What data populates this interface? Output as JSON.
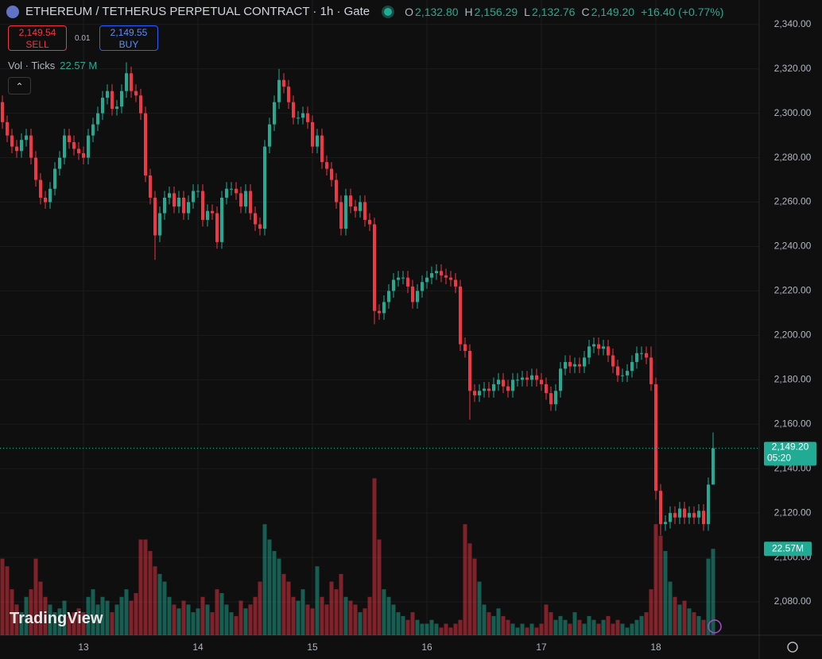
{
  "chart_data": {
    "type": "candlestick",
    "title": "ETHEREUM / TETHERUS PERPETUAL CONTRACT · 1h · Gate",
    "legend": [
      {
        "key": "O",
        "value": 2132.8,
        "label": "2,132.80"
      },
      {
        "key": "H",
        "value": 2156.29,
        "label": "2,156.29"
      },
      {
        "key": "L",
        "value": 2132.76,
        "label": "2,132.76"
      },
      {
        "key": "C",
        "value": 2149.2,
        "label": "2,149.20"
      }
    ],
    "change_label": "+16.40 (+0.77%)",
    "sell": {
      "value": 2149.54,
      "label": "2,149.54",
      "text": "SELL"
    },
    "spread": 0.01,
    "buy": {
      "value": 2149.55,
      "label": "2,149.55",
      "text": "BUY"
    },
    "volume_legend": {
      "name": "Vol · Ticks",
      "value": 22.57,
      "label": "22.57 M"
    },
    "last_price": {
      "value": 2149.2,
      "label": "2,149.20",
      "countdown": "05:20"
    },
    "last_volume": {
      "value": 22.57,
      "label": "22.57M"
    },
    "brand": "TradingView",
    "up_color": "#22ab94",
    "down_color": "#f23645",
    "grid": true,
    "categories": [
      null,
      null,
      null,
      null,
      null,
      null,
      null,
      null,
      null,
      null,
      null,
      null,
      null,
      null,
      null,
      null,
      null,
      "13",
      null,
      null,
      null,
      null,
      null,
      null,
      null,
      null,
      null,
      null,
      null,
      null,
      null,
      null,
      null,
      null,
      null,
      null,
      null,
      null,
      null,
      null,
      null,
      "14",
      null,
      null,
      null,
      null,
      null,
      null,
      null,
      null,
      null,
      null,
      null,
      null,
      null,
      null,
      null,
      null,
      null,
      null,
      null,
      null,
      null,
      null,
      null,
      "15",
      null,
      null,
      null,
      null,
      null,
      null,
      null,
      null,
      null,
      null,
      null,
      null,
      null,
      null,
      null,
      null,
      null,
      null,
      null,
      null,
      null,
      null,
      null,
      "16",
      null,
      null,
      null,
      null,
      null,
      null,
      null,
      null,
      null,
      null,
      null,
      null,
      null,
      null,
      null,
      null,
      null,
      null,
      null,
      null,
      null,
      null,
      null,
      "17",
      null,
      null,
      null,
      null,
      null,
      null,
      null,
      null,
      null,
      null,
      null,
      null,
      null,
      null,
      null,
      null,
      null,
      null,
      null,
      null,
      null,
      null,
      null,
      "18",
      null,
      null,
      null,
      null,
      null,
      null,
      null,
      null,
      null,
      null,
      null,
      null
    ],
    "open": [
      2305,
      2296,
      2290,
      2285,
      2283,
      2288,
      2290,
      2280,
      2270,
      2262,
      2260,
      2266,
      2275,
      2280,
      2290,
      2287,
      2284,
      2282,
      2280,
      2290,
      2295,
      2300,
      2307,
      2310,
      2302,
      2303,
      2310,
      2318,
      2310,
      2308,
      2300,
      2272,
      2262,
      2245,
      2255,
      2262,
      2264,
      2258,
      2262,
      2255,
      2260,
      2265,
      2265,
      2252,
      2256,
      2255,
      2242,
      2262,
      2266,
      2266,
      2264,
      2258,
      2265,
      2255,
      2250,
      2248,
      2285,
      2295,
      2305,
      2315,
      2312,
      2305,
      2298,
      2298,
      2300,
      2296,
      2285,
      2290,
      2278,
      2275,
      2270,
      2260,
      2248,
      2263,
      2258,
      2256,
      2260,
      2252,
      2250,
      2211,
      2210,
      2215,
      2220,
      2225,
      2226,
      2226,
      2222,
      2215,
      2220,
      2224,
      2226,
      2228,
      2229,
      2227,
      2226,
      2225,
      2222,
      2196,
      2193,
      2175,
      2173,
      2175,
      2176,
      2175,
      2178,
      2180,
      2177,
      2175,
      2180,
      2180,
      2181,
      2180,
      2182,
      2180,
      2178,
      2174,
      2169,
      2175,
      2185,
      2188,
      2186,
      2187,
      2186,
      2190,
      2195,
      2196,
      2194,
      2195,
      2191,
      2186,
      2182,
      2182,
      2184,
      2188,
      2192,
      2192,
      2190,
      2178,
      2130,
      2115,
      2116,
      2120,
      2118,
      2122,
      2118,
      2120,
      2118,
      2121,
      2115,
      2132.8
    ],
    "high": [
      2308,
      2299,
      2293,
      2288,
      2291,
      2293,
      2293,
      2283,
      2273,
      2265,
      2269,
      2278,
      2283,
      2293,
      2293,
      2290,
      2287,
      2285,
      2293,
      2298,
      2303,
      2310,
      2313,
      2313,
      2306,
      2313,
      2323,
      2321,
      2313,
      2311,
      2303,
      2275,
      2265,
      2258,
      2265,
      2267,
      2267,
      2265,
      2265,
      2263,
      2268,
      2268,
      2268,
      2259,
      2259,
      2258,
      2265,
      2269,
      2269,
      2269,
      2267,
      2268,
      2268,
      2258,
      2253,
      2288,
      2298,
      2308,
      2320,
      2318,
      2315,
      2308,
      2301,
      2303,
      2303,
      2299,
      2293,
      2293,
      2281,
      2278,
      2273,
      2263,
      2266,
      2266,
      2261,
      2263,
      2263,
      2255,
      2253,
      2214,
      2218,
      2223,
      2228,
      2229,
      2229,
      2229,
      2225,
      2223,
      2227,
      2229,
      2231,
      2232,
      2232,
      2230,
      2229,
      2228,
      2225,
      2199,
      2196,
      2178,
      2178,
      2179,
      2179,
      2181,
      2183,
      2183,
      2180,
      2183,
      2183,
      2184,
      2184,
      2185,
      2185,
      2183,
      2181,
      2177,
      2178,
      2188,
      2191,
      2191,
      2190,
      2190,
      2193,
      2198,
      2199,
      2199,
      2198,
      2198,
      2194,
      2189,
      2185,
      2187,
      2191,
      2195,
      2195,
      2195,
      2195,
      2181,
      2133,
      2119,
      2123,
      2123,
      2125,
      2125,
      2123,
      2123,
      2124,
      2124,
      2136,
      2156.29
    ],
    "low": [
      2293,
      2287,
      2282,
      2280,
      2280,
      2285,
      2277,
      2267,
      2259,
      2257,
      2257,
      2263,
      2272,
      2277,
      2284,
      2281,
      2279,
      2277,
      2277,
      2287,
      2292,
      2297,
      2304,
      2299,
      2299,
      2300,
      2307,
      2307,
      2305,
      2297,
      2269,
      2259,
      2234,
      2242,
      2252,
      2259,
      2255,
      2255,
      2252,
      2252,
      2257,
      2262,
      2249,
      2249,
      2252,
      2239,
      2239,
      2259,
      2263,
      2261,
      2255,
      2255,
      2252,
      2247,
      2245,
      2245,
      2282,
      2292,
      2302,
      2309,
      2302,
      2295,
      2295,
      2295,
      2293,
      2282,
      2282,
      2275,
      2272,
      2267,
      2257,
      2245,
      2245,
      2255,
      2253,
      2253,
      2249,
      2247,
      2205,
      2207,
      2207,
      2212,
      2217,
      2222,
      2223,
      2219,
      2212,
      2212,
      2217,
      2221,
      2223,
      2225,
      2224,
      2223,
      2222,
      2219,
      2193,
      2190,
      2162,
      2170,
      2170,
      2172,
      2172,
      2172,
      2175,
      2174,
      2172,
      2172,
      2177,
      2177,
      2177,
      2177,
      2177,
      2175,
      2171,
      2166,
      2166,
      2172,
      2182,
      2183,
      2183,
      2183,
      2183,
      2187,
      2192,
      2191,
      2191,
      2188,
      2183,
      2179,
      2179,
      2179,
      2181,
      2185,
      2189,
      2187,
      2175,
      2126,
      2110,
      2112,
      2113,
      2115,
      2115,
      2115,
      2115,
      2115,
      2115,
      2112,
      2112,
      2132.76
    ],
    "close": [
      2296,
      2290,
      2285,
      2283,
      2288,
      2290,
      2280,
      2270,
      2262,
      2260,
      2266,
      2275,
      2280,
      2290,
      2287,
      2284,
      2282,
      2280,
      2290,
      2295,
      2300,
      2307,
      2310,
      2302,
      2303,
      2310,
      2318,
      2310,
      2308,
      2300,
      2272,
      2262,
      2245,
      2255,
      2262,
      2264,
      2258,
      2262,
      2255,
      2260,
      2265,
      2265,
      2252,
      2256,
      2255,
      2242,
      2262,
      2266,
      2266,
      2264,
      2258,
      2265,
      2255,
      2250,
      2248,
      2285,
      2295,
      2305,
      2315,
      2312,
      2305,
      2298,
      2298,
      2300,
      2296,
      2285,
      2290,
      2278,
      2275,
      2270,
      2260,
      2248,
      2263,
      2258,
      2256,
      2260,
      2252,
      2250,
      2211,
      2210,
      2215,
      2220,
      2225,
      2226,
      2226,
      2222,
      2215,
      2220,
      2224,
      2226,
      2228,
      2229,
      2227,
      2226,
      2225,
      2222,
      2196,
      2193,
      2175,
      2173,
      2175,
      2176,
      2175,
      2178,
      2180,
      2177,
      2175,
      2180,
      2180,
      2181,
      2180,
      2182,
      2180,
      2178,
      2174,
      2169,
      2175,
      2185,
      2188,
      2186,
      2187,
      2186,
      2190,
      2195,
      2196,
      2194,
      2195,
      2191,
      2186,
      2182,
      2182,
      2184,
      2188,
      2192,
      2192,
      2190,
      2178,
      2130,
      2115,
      2116,
      2120,
      2118,
      2122,
      2118,
      2120,
      2118,
      2121,
      2115,
      2132.8,
      2149.2
    ],
    "volume": {
      "axis": "y2",
      "values": [
        20,
        18,
        12,
        8,
        6,
        10,
        12,
        20,
        14,
        10,
        8,
        6,
        7,
        9,
        5,
        6,
        7,
        6,
        10,
        12,
        8,
        10,
        9,
        6,
        8,
        10,
        12,
        9,
        11,
        25,
        25,
        22,
        18,
        16,
        14,
        10,
        8,
        7,
        9,
        8,
        6,
        7,
        10,
        8,
        6,
        12,
        11,
        8,
        6,
        5,
        9,
        7,
        8,
        10,
        14,
        29,
        25,
        22,
        20,
        16,
        14,
        10,
        9,
        12,
        8,
        7,
        18,
        10,
        8,
        14,
        12,
        16,
        10,
        9,
        8,
        6,
        7,
        10,
        41,
        25,
        12,
        10,
        8,
        6,
        5,
        4,
        6,
        4,
        3,
        3,
        4,
        3,
        2,
        3,
        2,
        3,
        4,
        29,
        24,
        20,
        14,
        8,
        6,
        5,
        7,
        5,
        4,
        3,
        2,
        3,
        2,
        3,
        2,
        3,
        8,
        6,
        4,
        5,
        4,
        3,
        6,
        4,
        3,
        5,
        4,
        3,
        4,
        5,
        3,
        4,
        3,
        2,
        3,
        4,
        5,
        6,
        12,
        29,
        26,
        22,
        14,
        10,
        8,
        9,
        7,
        6,
        5,
        4,
        20,
        22.57
      ]
    },
    "ylim": [
      2065,
      2351
    ],
    "yticks": [
      {
        "value": 2080,
        "label": "2,080.00"
      },
      {
        "value": 2100,
        "label": "2,100.00"
      },
      {
        "value": 2120,
        "label": "2,120.00"
      },
      {
        "value": 2140,
        "label": "2,140.00"
      },
      {
        "value": 2160,
        "label": "2,160.00"
      },
      {
        "value": 2180,
        "label": "2,180.00"
      },
      {
        "value": 2200,
        "label": "2,200.00"
      },
      {
        "value": 2220,
        "label": "2,220.00"
      },
      {
        "value": 2240,
        "label": "2,240.00"
      },
      {
        "value": 2260,
        "label": "2,260.00"
      },
      {
        "value": 2280,
        "label": "2,280.00"
      },
      {
        "value": 2300,
        "label": "2,300.00"
      },
      {
        "value": 2320,
        "label": "2,320.00"
      },
      {
        "value": 2340,
        "label": "2,340.00"
      }
    ],
    "y2lim": [
      0,
      166
    ]
  }
}
